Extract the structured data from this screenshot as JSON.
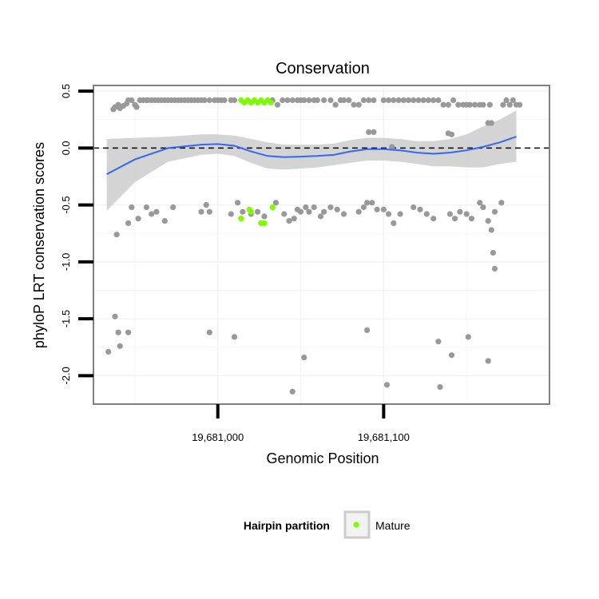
{
  "chart_data": {
    "type": "scatter",
    "title": "Conservation",
    "xlabel": "Genomic Position",
    "ylabel": "phyloP LRT conservation scores",
    "xlim": [
      19680925,
      19681200
    ],
    "ylim": [
      -2.25,
      0.55
    ],
    "x_ticks": [
      19681000,
      19681100
    ],
    "x_tick_labels": [
      "19,681,000",
      "19,681,100"
    ],
    "y_ticks": [
      0.5,
      0.0,
      -0.5,
      -1.0,
      -1.5,
      -2.0
    ],
    "y_tick_labels": [
      "0.5",
      "0.0",
      "-0.5",
      "-1.0",
      "-1.5",
      "-2.0"
    ],
    "reference_line": {
      "y": 0.0,
      "style": "dashed"
    },
    "grid": true,
    "legend": {
      "title": "Hairpin partition",
      "position": "bottom",
      "entries": [
        {
          "label": "Mature",
          "color": "#7CFC00"
        }
      ]
    },
    "colors": {
      "background_points": "#999999",
      "mature": "#7CFC00",
      "smooth_line": "#3366FF",
      "ribbon": "#CCCCCC",
      "panel_border": "#808080"
    },
    "series": [
      {
        "role": "background",
        "points": [
          [
            19680937,
            0.34
          ],
          [
            19680938,
            0.36
          ],
          [
            19680940,
            0.38
          ],
          [
            19680941,
            0.35
          ],
          [
            19680943,
            0.37
          ],
          [
            19680945,
            0.39
          ],
          [
            19680946,
            0.42
          ],
          [
            19680948,
            0.42
          ],
          [
            19680950,
            0.38
          ],
          [
            19680951,
            0.36
          ],
          [
            19680953,
            0.42
          ],
          [
            19680955,
            0.42
          ],
          [
            19680957,
            0.42
          ],
          [
            19680958,
            0.42
          ],
          [
            19680960,
            0.42
          ],
          [
            19680962,
            0.42
          ],
          [
            19680964,
            0.42
          ],
          [
            19680966,
            0.42
          ],
          [
            19680968,
            0.42
          ],
          [
            19680970,
            0.42
          ],
          [
            19680972,
            0.42
          ],
          [
            19680974,
            0.42
          ],
          [
            19680976,
            0.42
          ],
          [
            19680978,
            0.42
          ],
          [
            19680980,
            0.42
          ],
          [
            19680982,
            0.42
          ],
          [
            19680984,
            0.42
          ],
          [
            19680986,
            0.42
          ],
          [
            19680988,
            0.42
          ],
          [
            19680990,
            0.42
          ],
          [
            19680992,
            0.42
          ],
          [
            19680995,
            0.42
          ],
          [
            19680998,
            0.42
          ],
          [
            19681000,
            0.42
          ],
          [
            19681002,
            0.42
          ],
          [
            19681004,
            0.42
          ],
          [
            19681008,
            0.42
          ],
          [
            19681010,
            0.42
          ],
          [
            19681033,
            0.42
          ],
          [
            19681036,
            0.38
          ],
          [
            19681039,
            0.42
          ],
          [
            19681042,
            0.42
          ],
          [
            19681045,
            0.42
          ],
          [
            19681048,
            0.42
          ],
          [
            19681050,
            0.42
          ],
          [
            19681052,
            0.42
          ],
          [
            19681055,
            0.42
          ],
          [
            19681058,
            0.42
          ],
          [
            19681060,
            0.42
          ],
          [
            19681064,
            0.42
          ],
          [
            19681068,
            0.42
          ],
          [
            19681071,
            0.38
          ],
          [
            19681074,
            0.42
          ],
          [
            19681076,
            0.42
          ],
          [
            19681079,
            0.42
          ],
          [
            19681082,
            0.38
          ],
          [
            19681085,
            0.38
          ],
          [
            19681088,
            0.42
          ],
          [
            19681091,
            0.42
          ],
          [
            19681094,
            0.42
          ],
          [
            19681100,
            0.42
          ],
          [
            19681103,
            0.42
          ],
          [
            19681106,
            0.42
          ],
          [
            19681109,
            0.42
          ],
          [
            19681112,
            0.42
          ],
          [
            19681115,
            0.42
          ],
          [
            19681118,
            0.42
          ],
          [
            19681121,
            0.42
          ],
          [
            19681124,
            0.42
          ],
          [
            19681127,
            0.42
          ],
          [
            19681130,
            0.42
          ],
          [
            19681133,
            0.42
          ],
          [
            19681136,
            0.38
          ],
          [
            19681139,
            0.38
          ],
          [
            19681142,
            0.42
          ],
          [
            19681145,
            0.38
          ],
          [
            19681148,
            0.38
          ],
          [
            19681150,
            0.38
          ],
          [
            19681152,
            0.38
          ],
          [
            19681155,
            0.38
          ],
          [
            19681158,
            0.38
          ],
          [
            19681160,
            0.38
          ],
          [
            19681164,
            0.38
          ],
          [
            19681172,
            0.38
          ],
          [
            19681174,
            0.42
          ],
          [
            19681176,
            0.38
          ],
          [
            19681178,
            0.42
          ],
          [
            19681180,
            0.38
          ],
          [
            19681182,
            0.38
          ],
          [
            19681091,
            0.14
          ],
          [
            19681094,
            0.14
          ],
          [
            19681139,
            0.13
          ],
          [
            19681141,
            0.12
          ],
          [
            19681105,
            0.01
          ],
          [
            19681163,
            0.22
          ],
          [
            19681165,
            0.22
          ],
          [
            19680939,
            -0.76
          ],
          [
            19680946,
            -0.66
          ],
          [
            19680948,
            -0.52
          ],
          [
            19680952,
            -0.62
          ],
          [
            19680957,
            -0.52
          ],
          [
            19680960,
            -0.58
          ],
          [
            19680963,
            -0.56
          ],
          [
            19680968,
            -0.64
          ],
          [
            19680973,
            -0.52
          ],
          [
            19680990,
            -0.56
          ],
          [
            19680993,
            -0.5
          ],
          [
            19680995,
            -0.56
          ],
          [
            19681008,
            -0.58
          ],
          [
            19681012,
            -0.48
          ],
          [
            19681015,
            -0.56
          ],
          [
            19681020,
            -0.58
          ],
          [
            19681024,
            -0.56
          ],
          [
            19681028,
            -0.6
          ],
          [
            19681035,
            -0.48
          ],
          [
            19681040,
            -0.58
          ],
          [
            19681043,
            -0.64
          ],
          [
            19681046,
            -0.62
          ],
          [
            19681048,
            -0.54
          ],
          [
            19681050,
            -0.56
          ],
          [
            19681053,
            -0.52
          ],
          [
            19681055,
            -0.56
          ],
          [
            19681058,
            -0.52
          ],
          [
            19681062,
            -0.6
          ],
          [
            19681064,
            -0.56
          ],
          [
            19681068,
            -0.52
          ],
          [
            19681072,
            -0.54
          ],
          [
            19681076,
            -0.58
          ],
          [
            19681085,
            -0.56
          ],
          [
            19681088,
            -0.52
          ],
          [
            19681090,
            -0.48
          ],
          [
            19681093,
            -0.48
          ],
          [
            19681096,
            -0.54
          ],
          [
            19681100,
            -0.54
          ],
          [
            19681103,
            -0.58
          ],
          [
            19681106,
            -0.66
          ],
          [
            19681110,
            -0.58
          ],
          [
            19681118,
            -0.52
          ],
          [
            19681122,
            -0.54
          ],
          [
            19681126,
            -0.58
          ],
          [
            19681130,
            -0.62
          ],
          [
            19681140,
            -0.58
          ],
          [
            19681143,
            -0.62
          ],
          [
            19681146,
            -0.56
          ],
          [
            19681150,
            -0.58
          ],
          [
            19681153,
            -0.62
          ],
          [
            19681158,
            -0.48
          ],
          [
            19681160,
            -0.52
          ],
          [
            19681163,
            -0.64
          ],
          [
            19681167,
            -0.56
          ],
          [
            19681171,
            -0.48
          ],
          [
            19681165,
            -0.72
          ],
          [
            19681166,
            -0.92
          ],
          [
            19681167,
            -1.06
          ],
          [
            19680934,
            -1.79
          ],
          [
            19680938,
            -1.48
          ],
          [
            19680940,
            -1.62
          ],
          [
            19680941,
            -1.74
          ],
          [
            19680946,
            -1.62
          ],
          [
            19680995,
            -1.62
          ],
          [
            19681010,
            -1.66
          ],
          [
            19681045,
            -2.14
          ],
          [
            19681052,
            -1.84
          ],
          [
            19681090,
            -1.6
          ],
          [
            19681102,
            -2.08
          ],
          [
            19681133,
            -1.7
          ],
          [
            19681134,
            -2.1
          ],
          [
            19681141,
            -1.82
          ],
          [
            19681151,
            -1.66
          ],
          [
            19681163,
            -1.87
          ]
        ]
      },
      {
        "name": "Mature",
        "points": [
          [
            19681014,
            0.42
          ],
          [
            19681016,
            0.4
          ],
          [
            19681018,
            0.42
          ],
          [
            19681020,
            0.4
          ],
          [
            19681022,
            0.42
          ],
          [
            19681024,
            0.4
          ],
          [
            19681026,
            0.42
          ],
          [
            19681028,
            0.4
          ],
          [
            19681030,
            0.42
          ],
          [
            19681032,
            0.4
          ],
          [
            19681014,
            -0.62
          ],
          [
            19681019,
            -0.54
          ],
          [
            19681020,
            -0.56
          ],
          [
            19681026,
            -0.66
          ],
          [
            19681028,
            -0.66
          ],
          [
            19681033,
            -0.52
          ]
        ]
      }
    ],
    "smooth": {
      "x": [
        19680933,
        19680950,
        19680970,
        19680990,
        19681000,
        19681010,
        19681020,
        19681030,
        19681040,
        19681050,
        19681060,
        19681070,
        19681080,
        19681090,
        19681100,
        19681110,
        19681120,
        19681130,
        19681140,
        19681150,
        19681160,
        19681170,
        19681180
      ],
      "y": [
        -0.23,
        -0.1,
        0.0,
        0.03,
        0.035,
        0.02,
        -0.03,
        -0.07,
        -0.08,
        -0.075,
        -0.07,
        -0.06,
        -0.03,
        -0.01,
        -0.01,
        -0.02,
        -0.04,
        -0.05,
        -0.04,
        -0.02,
        0.01,
        0.05,
        0.1
      ],
      "lower": [
        -0.55,
        -0.3,
        -0.12,
        -0.06,
        -0.05,
        -0.07,
        -0.13,
        -0.18,
        -0.19,
        -0.18,
        -0.17,
        -0.15,
        -0.13,
        -0.11,
        -0.11,
        -0.12,
        -0.14,
        -0.16,
        -0.16,
        -0.17,
        -0.17,
        -0.14,
        -0.12
      ],
      "upper": [
        0.08,
        0.09,
        0.1,
        0.12,
        0.12,
        0.11,
        0.08,
        0.05,
        0.03,
        0.03,
        0.03,
        0.04,
        0.07,
        0.09,
        0.09,
        0.08,
        0.06,
        0.06,
        0.08,
        0.12,
        0.19,
        0.25,
        0.33
      ]
    }
  }
}
